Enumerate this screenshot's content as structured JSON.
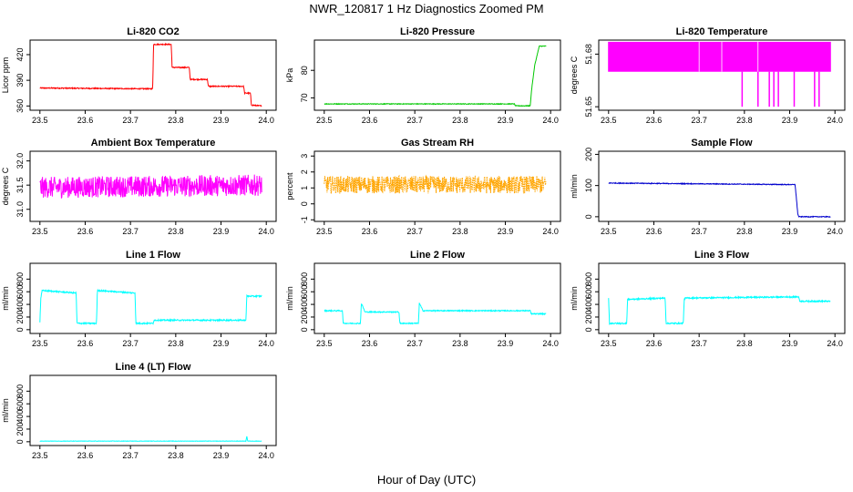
{
  "figure": {
    "title": "NWR_120817  1 Hz Diagnostics Zoomed PM",
    "xlabel": "Hour of Day (UTC)"
  },
  "chart_data": [
    {
      "type": "line",
      "title": "Li-820 CO2",
      "ylabel": "Licor ppm",
      "xlim": [
        23.5,
        24.0
      ],
      "ylim": [
        355,
        437
      ],
      "xticks": [
        "23.5",
        "23.6",
        "23.7",
        "23.8",
        "23.9",
        "24.0"
      ],
      "yticks": [
        {
          "v": 360,
          "label": "360"
        },
        {
          "v": 390,
          "label": "390"
        },
        {
          "v": 420,
          "label": "420"
        }
      ],
      "color": "#ff0000",
      "noise": 0.6,
      "x": [
        23.5,
        23.749,
        23.751,
        23.79,
        23.792,
        23.83,
        23.832,
        23.87,
        23.872,
        23.95,
        23.952,
        23.965,
        23.967,
        23.99
      ],
      "y": [
        381,
        380,
        432,
        432,
        405,
        405,
        391,
        391,
        383,
        383,
        375,
        375,
        361,
        360
      ]
    },
    {
      "type": "line",
      "title": "Li-820 Pressure",
      "ylabel": "kPa",
      "xlim": [
        23.5,
        24.0
      ],
      "ylim": [
        65.5,
        91
      ],
      "xticks": [
        "23.5",
        "23.6",
        "23.7",
        "23.8",
        "23.9",
        "24.0"
      ],
      "yticks": [
        {
          "v": 70,
          "label": "70"
        },
        {
          "v": 80,
          "label": "80"
        }
      ],
      "color": "#00c800",
      "noise": 0.12,
      "x": [
        23.5,
        23.92,
        23.922,
        23.955,
        23.958,
        23.965,
        23.975,
        23.99
      ],
      "y": [
        67.8,
        67.8,
        67.1,
        67.1,
        73,
        82,
        88.8,
        88.8
      ]
    },
    {
      "type": "line",
      "title": "Li-820 Temperature",
      "ylabel": "degrees C",
      "xlim": [
        23.5,
        24.0
      ],
      "ylim": [
        51.648,
        51.688
      ],
      "xticks": [
        "23.5",
        "23.6",
        "23.7",
        "23.8",
        "23.9",
        "24.0"
      ],
      "yticks": [
        {
          "v": 51.65,
          "label": "51.65"
        },
        {
          "v": 51.68,
          "label": "51.68"
        }
      ],
      "color": "#ff00ff",
      "pattern": "binary",
      "levels": [
        51.67,
        51.687
      ],
      "dips": [
        23.795,
        23.83,
        23.855,
        23.865,
        23.875,
        23.91,
        23.955,
        23.965
      ],
      "dip_level": 51.65
    },
    {
      "type": "line",
      "title": "Ambient Box Temperature",
      "ylabel": "degrees C",
      "xlim": [
        23.5,
        24.0
      ],
      "ylim": [
        30.75,
        32.2
      ],
      "xticks": [
        "23.5",
        "23.6",
        "23.7",
        "23.8",
        "23.9",
        "24.0"
      ],
      "yticks": [
        {
          "v": 31.0,
          "label": "31.0"
        },
        {
          "v": 31.5,
          "label": "31.5"
        },
        {
          "v": 32.0,
          "label": "32.0"
        }
      ],
      "color": "#ff00ff",
      "noise": 0.22,
      "x": [
        23.5,
        23.99
      ],
      "y": [
        31.45,
        31.5
      ]
    },
    {
      "type": "line",
      "title": "Gas Stream RH",
      "ylabel": "percent",
      "xlim": [
        23.5,
        24.0
      ],
      "ylim": [
        -1.1,
        3.3
      ],
      "xticks": [
        "23.5",
        "23.6",
        "23.7",
        "23.8",
        "23.9",
        "24.0"
      ],
      "yticks": [
        {
          "v": -1,
          "label": "-1"
        },
        {
          "v": 0,
          "label": "0"
        },
        {
          "v": 1,
          "label": "1"
        },
        {
          "v": 2,
          "label": "2"
        },
        {
          "v": 3,
          "label": "3"
        }
      ],
      "color": "#ffa500",
      "noise": 0.55,
      "dotted": true,
      "x": [
        23.5,
        23.99
      ],
      "y": [
        1.2,
        1.2
      ]
    },
    {
      "type": "line",
      "title": "Sample Flow",
      "ylabel": "ml/min",
      "xlim": [
        23.5,
        24.0
      ],
      "ylim": [
        -15,
        210
      ],
      "xticks": [
        "23.5",
        "23.6",
        "23.7",
        "23.8",
        "23.9",
        "24.0"
      ],
      "yticks": [
        {
          "v": 0,
          "label": "0"
        },
        {
          "v": 100,
          "label": "100"
        },
        {
          "v": 200,
          "label": "200"
        }
      ],
      "color": "#0000cd",
      "noise": 1.2,
      "x": [
        23.5,
        23.91,
        23.912,
        23.918,
        23.92,
        23.99
      ],
      "y": [
        108,
        103,
        103,
        8,
        0,
        0
      ]
    },
    {
      "type": "line",
      "title": "Line 1 Flow",
      "ylabel": "ml/min",
      "xlim": [
        23.5,
        24.0
      ],
      "ylim": [
        -60,
        1050
      ],
      "xticks": [
        "23.5",
        "23.6",
        "23.7",
        "23.8",
        "23.9",
        "24.0"
      ],
      "yticks": [
        {
          "v": 0,
          "label": "0"
        },
        {
          "v": 200,
          "label": "200"
        },
        {
          "v": 400,
          "label": "400"
        },
        {
          "v": 600,
          "label": "600"
        },
        {
          "v": 800,
          "label": "800"
        }
      ],
      "color": "#00ffff",
      "noise": 10,
      "x": [
        23.5,
        23.502,
        23.505,
        23.58,
        23.582,
        23.625,
        23.627,
        23.71,
        23.712,
        23.75,
        23.752,
        23.955,
        23.957,
        23.99
      ],
      "y": [
        120,
        500,
        620,
        580,
        100,
        100,
        620,
        580,
        100,
        100,
        150,
        150,
        530,
        530
      ]
    },
    {
      "type": "line",
      "title": "Line 2 Flow",
      "ylabel": "ml/min",
      "xlim": [
        23.5,
        24.0
      ],
      "ylim": [
        -60,
        1050
      ],
      "xticks": [
        "23.5",
        "23.6",
        "23.7",
        "23.8",
        "23.9",
        "24.0"
      ],
      "yticks": [
        {
          "v": 0,
          "label": "0"
        },
        {
          "v": 200,
          "label": "200"
        },
        {
          "v": 400,
          "label": "400"
        },
        {
          "v": 600,
          "label": "600"
        },
        {
          "v": 800,
          "label": "800"
        }
      ],
      "color": "#00ffff",
      "noise": 8,
      "x": [
        23.5,
        23.54,
        23.542,
        23.58,
        23.582,
        23.59,
        23.665,
        23.667,
        23.708,
        23.71,
        23.718,
        23.955,
        23.957,
        23.99
      ],
      "y": [
        300,
        300,
        100,
        100,
        420,
        280,
        280,
        100,
        100,
        420,
        300,
        300,
        250,
        250
      ]
    },
    {
      "type": "line",
      "title": "Line 3 Flow",
      "ylabel": "ml/min",
      "xlim": [
        23.5,
        24.0
      ],
      "ylim": [
        -60,
        1050
      ],
      "xticks": [
        "23.5",
        "23.6",
        "23.7",
        "23.8",
        "23.9",
        "24.0"
      ],
      "yticks": [
        {
          "v": 0,
          "label": "0"
        },
        {
          "v": 200,
          "label": "200"
        },
        {
          "v": 400,
          "label": "400"
        },
        {
          "v": 600,
          "label": "600"
        },
        {
          "v": 800,
          "label": "800"
        }
      ],
      "color": "#00ffff",
      "noise": 10,
      "x": [
        23.5,
        23.502,
        23.505,
        23.54,
        23.542,
        23.545,
        23.625,
        23.627,
        23.665,
        23.667,
        23.67,
        23.92,
        23.922,
        23.99
      ],
      "y": [
        500,
        100,
        100,
        100,
        480,
        480,
        500,
        100,
        100,
        480,
        500,
        520,
        450,
        450
      ]
    },
    {
      "type": "line",
      "title": "Line 4 (LT) Flow",
      "ylabel": "ml/min",
      "xlim": [
        23.5,
        24.0
      ],
      "ylim": [
        -60,
        1050
      ],
      "xticks": [
        "23.5",
        "23.6",
        "23.7",
        "23.8",
        "23.9",
        "24.0"
      ],
      "yticks": [
        {
          "v": 0,
          "label": "0"
        },
        {
          "v": 200,
          "label": "200"
        },
        {
          "v": 400,
          "label": "400"
        },
        {
          "v": 600,
          "label": "600"
        },
        {
          "v": 800,
          "label": "800"
        }
      ],
      "color": "#00ffff",
      "noise": 3,
      "x": [
        23.5,
        23.955,
        23.957,
        23.959,
        23.99
      ],
      "y": [
        10,
        10,
        90,
        10,
        10
      ]
    }
  ]
}
